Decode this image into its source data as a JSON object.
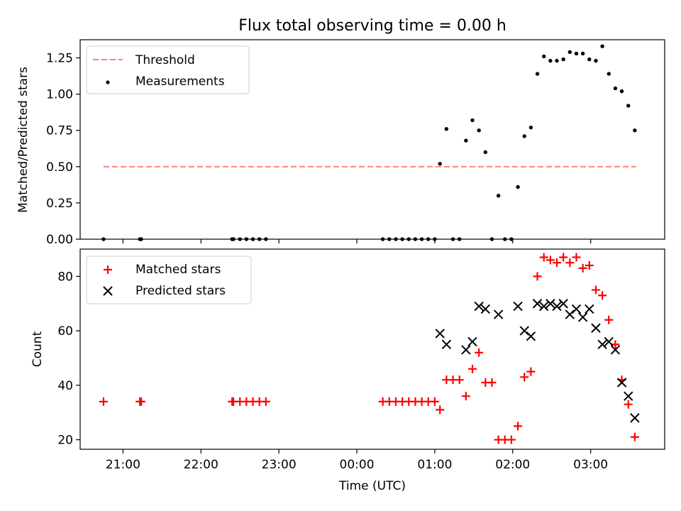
{
  "title": "Flux total observing time = 0.00 h",
  "colors": {
    "threshold": "#ff8080",
    "measurements": "#000000",
    "matched": "#ff0000",
    "predicted": "#000000"
  },
  "chart_data": [
    {
      "type": "scatter",
      "title": "Flux total observing time = 0.00 h",
      "ylabel": "Matched/Predicted stars",
      "xlabel": "",
      "ylim": [
        0,
        1.375
      ],
      "xlim": [
        "20:27",
        "03:57"
      ],
      "yticks": [
        "0.00",
        "0.25",
        "0.50",
        "0.75",
        "1.00",
        "1.25"
      ],
      "legend": {
        "placement": "top-left",
        "entries": [
          "Threshold",
          "Measurements"
        ]
      },
      "threshold": {
        "name": "Threshold",
        "value": 0.5,
        "x_start": "20:45",
        "x_end": "03:35",
        "style": "dashed"
      },
      "series": [
        {
          "name": "Measurements",
          "marker": "dot",
          "points": [
            [
              "20:45",
              0
            ],
            [
              "21:13",
              0
            ],
            [
              "21:14",
              0
            ],
            [
              "22:24",
              0
            ],
            [
              "22:25",
              0
            ],
            [
              "22:30",
              0
            ],
            [
              "22:35",
              0
            ],
            [
              "22:40",
              0
            ],
            [
              "22:45",
              0
            ],
            [
              "22:50",
              0
            ],
            [
              "00:20",
              0
            ],
            [
              "00:25",
              0
            ],
            [
              "00:30",
              0
            ],
            [
              "00:35",
              0
            ],
            [
              "00:40",
              0
            ],
            [
              "00:45",
              0
            ],
            [
              "00:50",
              0
            ],
            [
              "00:55",
              0
            ],
            [
              "01:00",
              0
            ],
            [
              "01:04",
              0.52
            ],
            [
              "01:09",
              0.76
            ],
            [
              "01:14",
              0
            ],
            [
              "01:19",
              0
            ],
            [
              "01:24",
              0.68
            ],
            [
              "01:29",
              0.82
            ],
            [
              "01:34",
              0.75
            ],
            [
              "01:39",
              0.6
            ],
            [
              "01:44",
              0
            ],
            [
              "01:49",
              0.3
            ],
            [
              "01:54",
              0
            ],
            [
              "01:59",
              0
            ],
            [
              "02:04",
              0.36
            ],
            [
              "02:09",
              0.71
            ],
            [
              "02:14",
              0.77
            ],
            [
              "02:19",
              1.14
            ],
            [
              "02:24",
              1.26
            ],
            [
              "02:29",
              1.23
            ],
            [
              "02:34",
              1.23
            ],
            [
              "02:39",
              1.24
            ],
            [
              "02:44",
              1.29
            ],
            [
              "02:49",
              1.28
            ],
            [
              "02:54",
              1.28
            ],
            [
              "02:59",
              1.24
            ],
            [
              "03:04",
              1.23
            ],
            [
              "03:09",
              1.33
            ],
            [
              "03:14",
              1.14
            ],
            [
              "03:19",
              1.04
            ],
            [
              "03:24",
              1.02
            ],
            [
              "03:29",
              0.92
            ],
            [
              "03:34",
              0.75
            ]
          ]
        }
      ]
    },
    {
      "type": "scatter",
      "title": "",
      "ylabel": "Count",
      "xlabel": "Time (UTC)",
      "ylim": [
        16.5,
        90
      ],
      "xlim": [
        "20:27",
        "03:57"
      ],
      "xticks": [
        "21:00",
        "22:00",
        "23:00",
        "00:00",
        "01:00",
        "02:00",
        "03:00"
      ],
      "yticks": [
        "20",
        "40",
        "60",
        "80"
      ],
      "legend": {
        "placement": "top-left",
        "entries": [
          "Matched stars",
          "Predicted stars"
        ]
      },
      "series": [
        {
          "name": "Matched stars",
          "marker": "plus",
          "points": [
            [
              "20:45",
              34
            ],
            [
              "21:13",
              34
            ],
            [
              "21:14",
              34
            ],
            [
              "22:24",
              34
            ],
            [
              "22:25",
              34
            ],
            [
              "22:30",
              34
            ],
            [
              "22:35",
              34
            ],
            [
              "22:40",
              34
            ],
            [
              "22:45",
              34
            ],
            [
              "22:50",
              34
            ],
            [
              "00:20",
              34
            ],
            [
              "00:25",
              34
            ],
            [
              "00:30",
              34
            ],
            [
              "00:35",
              34
            ],
            [
              "00:40",
              34
            ],
            [
              "00:45",
              34
            ],
            [
              "00:50",
              34
            ],
            [
              "00:55",
              34
            ],
            [
              "01:00",
              34
            ],
            [
              "01:04",
              31
            ],
            [
              "01:09",
              42
            ],
            [
              "01:14",
              42
            ],
            [
              "01:19",
              42
            ],
            [
              "01:24",
              36
            ],
            [
              "01:29",
              46
            ],
            [
              "01:34",
              52
            ],
            [
              "01:39",
              41
            ],
            [
              "01:44",
              41
            ],
            [
              "01:49",
              20
            ],
            [
              "01:54",
              20
            ],
            [
              "01:59",
              20
            ],
            [
              "02:04",
              25
            ],
            [
              "02:09",
              43
            ],
            [
              "02:14",
              45
            ],
            [
              "02:19",
              80
            ],
            [
              "02:24",
              87
            ],
            [
              "02:29",
              86
            ],
            [
              "02:34",
              85
            ],
            [
              "02:39",
              87
            ],
            [
              "02:44",
              85
            ],
            [
              "02:49",
              87
            ],
            [
              "02:54",
              83
            ],
            [
              "02:59",
              84
            ],
            [
              "03:04",
              75
            ],
            [
              "03:09",
              73
            ],
            [
              "03:14",
              64
            ],
            [
              "03:19",
              55
            ],
            [
              "03:24",
              42
            ],
            [
              "03:29",
              33
            ],
            [
              "03:34",
              21
            ]
          ]
        },
        {
          "name": "Predicted stars",
          "marker": "x",
          "points": [
            [
              "01:04",
              59
            ],
            [
              "01:09",
              55
            ],
            [
              "01:24",
              53
            ],
            [
              "01:29",
              56
            ],
            [
              "01:34",
              69
            ],
            [
              "01:39",
              68
            ],
            [
              "01:49",
              66
            ],
            [
              "02:04",
              69
            ],
            [
              "02:09",
              60
            ],
            [
              "02:14",
              58
            ],
            [
              "02:19",
              70
            ],
            [
              "02:24",
              69
            ],
            [
              "02:29",
              70
            ],
            [
              "02:34",
              69
            ],
            [
              "02:39",
              70
            ],
            [
              "02:44",
              66
            ],
            [
              "02:49",
              68
            ],
            [
              "02:54",
              65
            ],
            [
              "02:59",
              68
            ],
            [
              "03:04",
              61
            ],
            [
              "03:09",
              55
            ],
            [
              "03:14",
              56
            ],
            [
              "03:19",
              53
            ],
            [
              "03:24",
              41
            ],
            [
              "03:29",
              36
            ],
            [
              "03:34",
              28
            ]
          ]
        }
      ]
    }
  ]
}
